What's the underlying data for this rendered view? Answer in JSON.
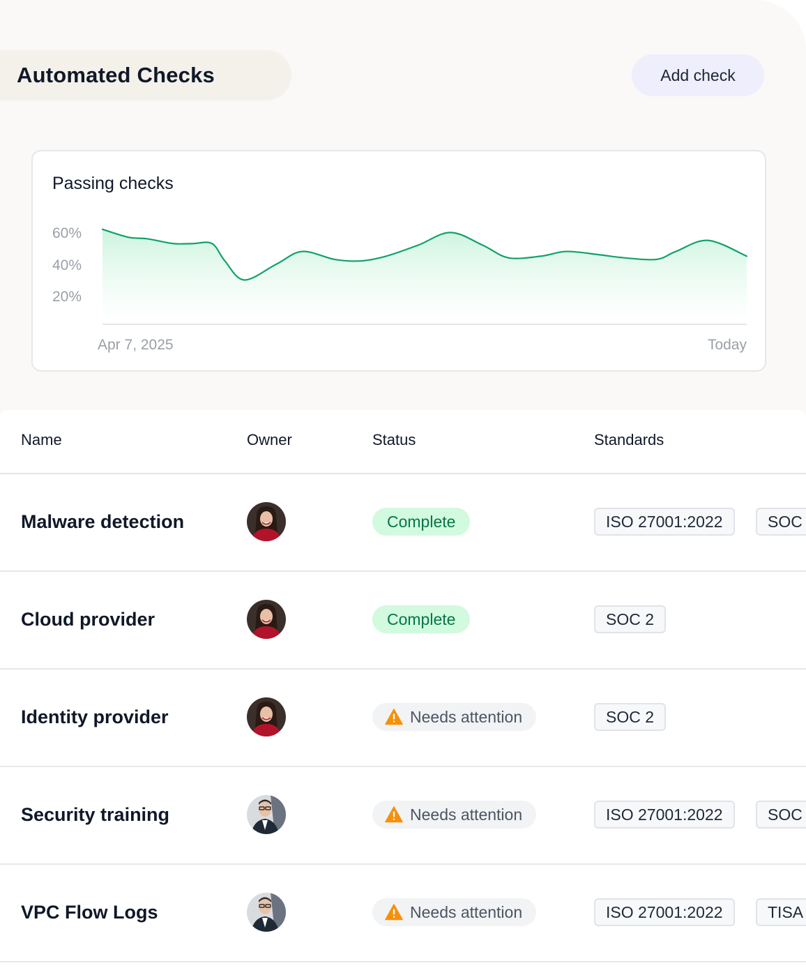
{
  "header": {
    "title": "Automated Checks",
    "add_button": "Add check"
  },
  "chart": {
    "title": "Passing checks",
    "y_ticks": [
      "60%",
      "40%",
      "20%"
    ],
    "x_start": "Apr 7, 2025",
    "x_end": "Today",
    "line_color": "#12a16b",
    "fill_color": "#d9f8e6"
  },
  "chart_data": {
    "type": "area",
    "title": "Passing checks",
    "xlabel": "",
    "ylabel": "",
    "x_range": [
      "Apr 7, 2025",
      "Today"
    ],
    "ylim": [
      0,
      70
    ],
    "y_ticks": [
      20,
      40,
      60
    ],
    "grid": false,
    "x": [
      0,
      0.04,
      0.07,
      0.11,
      0.14,
      0.17,
      0.19,
      0.22,
      0.27,
      0.31,
      0.36,
      0.4,
      0.44,
      0.49,
      0.54,
      0.59,
      0.63,
      0.68,
      0.72,
      0.77,
      0.81,
      0.86,
      0.89,
      0.94,
      1.0
    ],
    "series": [
      {
        "values": [
          60,
          55,
          54,
          51,
          51,
          51,
          40,
          28,
          38,
          46,
          41,
          40,
          43,
          50,
          58,
          50,
          42,
          43,
          46,
          44,
          42,
          41,
          46,
          53,
          43
        ]
      }
    ]
  },
  "table": {
    "columns": [
      "Name",
      "Owner",
      "Status",
      "Standards"
    ],
    "rows": [
      {
        "name": "Malware detection",
        "owner": "woman",
        "status": "Complete",
        "status_type": "complete",
        "standards": [
          "ISO 27001:2022",
          "SOC"
        ]
      },
      {
        "name": "Cloud provider",
        "owner": "woman",
        "status": "Complete",
        "status_type": "complete",
        "standards": [
          "SOC 2"
        ]
      },
      {
        "name": "Identity provider",
        "owner": "woman",
        "status": "Needs attention",
        "status_type": "attention",
        "standards": [
          "SOC 2"
        ]
      },
      {
        "name": "Security training",
        "owner": "man",
        "status": "Needs attention",
        "status_type": "attention",
        "standards": [
          "ISO 27001:2022",
          "SOC"
        ]
      },
      {
        "name": "VPC Flow Logs",
        "owner": "man",
        "status": "Needs attention",
        "status_type": "attention",
        "standards": [
          "ISO 27001:2022",
          "TISA"
        ]
      }
    ]
  },
  "colors": {
    "complete_bg": "#d1fadf",
    "complete_text": "#067647",
    "attention_icon": "#f79009",
    "button_bg": "#eeeefc"
  }
}
